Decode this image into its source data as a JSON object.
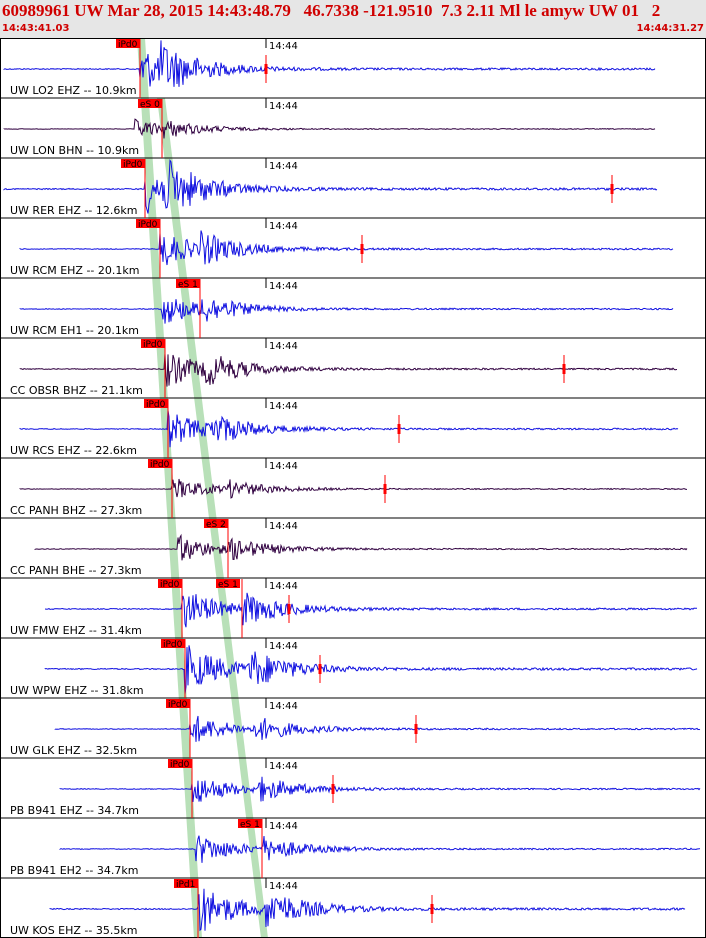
{
  "header": {
    "title": "60989961 UW Mar 28, 2015 14:43:48.79   46.7338 -121.9510  7.3 2.11 Ml le amyw UW 01   2",
    "start_time": "14:43:41.03",
    "end_time": "14:44:31.27"
  },
  "colors": {
    "trace_blue": "#1010e0",
    "trace_dark": "#300040",
    "pick_red": "#ff0000",
    "phase_band": "#b8e0b8",
    "header_text": "#d00000"
  },
  "traces": [
    {
      "label": "UW LO2 EHZ -- 10.9km",
      "time_tick": "14:44",
      "pick": "iPd0",
      "style": "blue",
      "amp": 1.0
    },
    {
      "label": "UW LON BHN -- 10.9km",
      "time_tick": "14:44",
      "pick": "eS 0",
      "style": "dark",
      "amp": 0.4
    },
    {
      "label": "UW RER EHZ -- 12.6km",
      "time_tick": "14:44",
      "pick": "iPd0",
      "style": "blue",
      "amp": 1.1
    },
    {
      "label": "UW RCM EHZ -- 20.1km",
      "time_tick": "14:44",
      "pick": "iPd0",
      "style": "blue",
      "amp": 0.8
    },
    {
      "label": "UW RCM EH1 -- 20.1km",
      "time_tick": "14:44",
      "pick": "eS 1",
      "style": "blue",
      "amp": 0.7
    },
    {
      "label": "CC OBSR BHZ -- 21.1km",
      "time_tick": "14:44",
      "pick": "iPd0",
      "style": "dark",
      "amp": 0.8
    },
    {
      "label": "UW RCS EHZ -- 22.6km",
      "time_tick": "14:44",
      "pick": "iPd0",
      "style": "blue",
      "amp": 0.8
    },
    {
      "label": "CC PANH BHZ -- 27.3km",
      "time_tick": "14:44",
      "pick": "iPd0",
      "style": "dark",
      "amp": 0.5
    },
    {
      "label": "CC PANH BHE -- 27.3km",
      "time_tick": "14:44",
      "pick": "eS 2",
      "style": "dark",
      "amp": 0.6
    },
    {
      "label": "UW FMW EHZ -- 31.4km",
      "time_tick": "14:44",
      "pick": "iPd0",
      "pick2": "eS 1",
      "style": "blue",
      "amp": 0.9
    },
    {
      "label": "UW WPW EHZ -- 31.8km",
      "time_tick": "14:44",
      "pick": "iPd0",
      "style": "blue",
      "amp": 1.1
    },
    {
      "label": "UW GLK EHZ -- 32.5km",
      "time_tick": "14:44",
      "pick": "iPd0",
      "style": "blue",
      "amp": 0.7
    },
    {
      "label": "PB B941 EHZ -- 34.7km",
      "time_tick": "14:44",
      "pick": "iPd0",
      "style": "blue",
      "amp": 0.7
    },
    {
      "label": "PB B941 EH2 -- 34.7km",
      "time_tick": "14:44",
      "pick": "eS 1",
      "style": "blue",
      "amp": 0.7
    },
    {
      "label": "UW KOS EHZ -- 35.5km",
      "time_tick": "14:44",
      "pick": "iPd1",
      "style": "blue",
      "amp": 1.1
    }
  ]
}
